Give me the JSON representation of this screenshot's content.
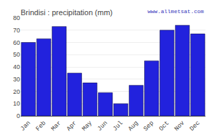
{
  "chart_data": {
    "type": "bar",
    "title": "Brindisi : precipitation (mm)",
    "categories": [
      "Jan",
      "Feb",
      "Mar",
      "Apr",
      "May",
      "Jun",
      "Jul",
      "Aug",
      "Sep",
      "Oct",
      "Nov",
      "Dec"
    ],
    "values": [
      60,
      63,
      73,
      35,
      27,
      19,
      10,
      25,
      45,
      70,
      74,
      67
    ],
    "color": "#2222dd",
    "ylim": [
      0,
      80
    ],
    "yticks": [
      0,
      10,
      20,
      30,
      40,
      50,
      60,
      70,
      80
    ],
    "grid": true,
    "annotations": [
      "www.allmetsat.com"
    ]
  }
}
